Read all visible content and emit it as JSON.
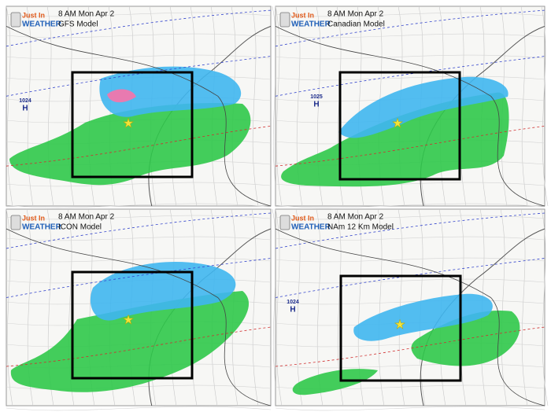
{
  "logo": {
    "top": "Just In",
    "bottom": "WEATHER"
  },
  "panels": [
    {
      "time": "8 AM Mon Apr 2",
      "model": "GFS Model",
      "high": {
        "pressure": "1024",
        "letter": "H"
      }
    },
    {
      "time": "8 AM Mon Apr 2",
      "model": "Canadian Model",
      "high": {
        "pressure": "1025",
        "letter": "H"
      }
    },
    {
      "time": "8 AM Mon Apr 2",
      "model": "ICON Model"
    },
    {
      "time": "8 AM Mon Apr 2",
      "model": "NAm 12 Km Model",
      "high": {
        "pressure": "1024",
        "letter": "H"
      }
    }
  ]
}
